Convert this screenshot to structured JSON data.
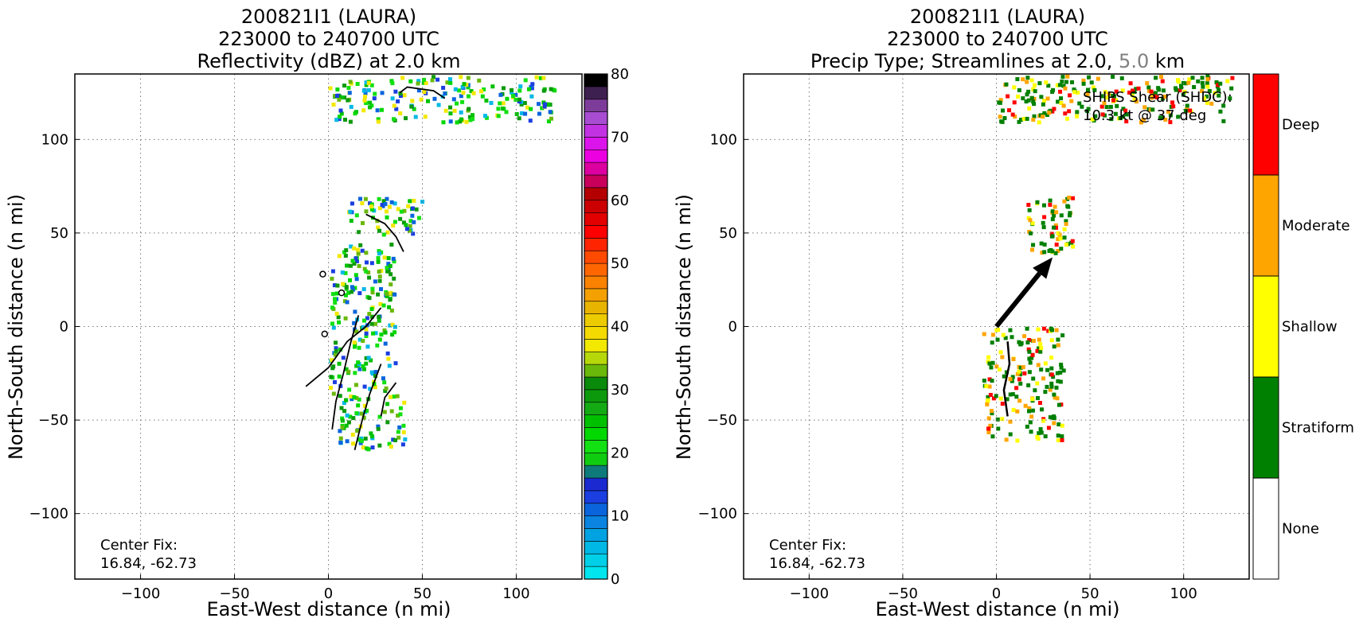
{
  "chart_data": [
    {
      "type": "heatmap",
      "title_lines": [
        "200821I1 (LAURA)",
        "223000 to 240700 UTC",
        "Reflectivity (dBZ) at 2.0 km"
      ],
      "xlabel": "East-West distance (n mi)",
      "ylabel": "North-South distance (n mi)",
      "xlim": [
        -135,
        135
      ],
      "ylim": [
        -135,
        135
      ],
      "xticks": [
        -100,
        -50,
        0,
        50,
        100
      ],
      "yticks": [
        -100,
        -50,
        0,
        50,
        100
      ],
      "xtick_labels": [
        "−100",
        "−50",
        "0",
        "50",
        "100"
      ],
      "ytick_labels": [
        "−100",
        "−50",
        "0",
        "50",
        "100"
      ],
      "grid": true,
      "annotation_lines": [
        "Center Fix:",
        "16.84, -62.73"
      ],
      "colorbar": {
        "min": 0,
        "max": 80,
        "step": 2.5,
        "ticks": [
          0,
          10,
          20,
          30,
          40,
          50,
          60,
          70,
          80
        ],
        "tick_labels": [
          "0",
          "10",
          "20",
          "30",
          "40",
          "50",
          "60",
          "70",
          "80"
        ],
        "colors": [
          "#00e5ee",
          "#00cfe8",
          "#00b8e6",
          "#00a2e2",
          "#0a84e0",
          "#0a64dc",
          "#1a3ee0",
          "#1a2ad0",
          "#0f7a7a",
          "#10cc10",
          "#12e012",
          "#00d800",
          "#00c000",
          "#14aa14",
          "#0c9a0c",
          "#0a8a0a",
          "#6ab80a",
          "#b6d80a",
          "#f2e800",
          "#f4da00",
          "#eccb00",
          "#e8b400",
          "#f4a000",
          "#fa8200",
          "#ff6600",
          "#ff4a00",
          "#ff2400",
          "#ff0000",
          "#e20000",
          "#cc0000",
          "#b40000",
          "#c8005c",
          "#dc00a0",
          "#ec00e2",
          "#dc14ec",
          "#c232e2",
          "#a84cd2",
          "#7e3c9a",
          "#3e2050",
          "#000000"
        ]
      },
      "echo_regions": [
        {
          "x": [
            0,
            35
          ],
          "y": [
            -35,
            45
          ]
        },
        {
          "x": [
            5,
            40
          ],
          "y": [
            -65,
            -35
          ]
        },
        {
          "x": [
            10,
            50
          ],
          "y": [
            50,
            70
          ]
        },
        {
          "x": [
            0,
            120
          ],
          "y": [
            110,
            135
          ]
        }
      ],
      "marker_points": [
        [
          -3,
          28
        ],
        [
          7,
          18
        ],
        [
          -2,
          -4
        ]
      ]
    },
    {
      "type": "heatmap",
      "title_lines": [
        "200821I1 (LAURA)",
        "223000 to 240700 UTC"
      ],
      "title_line3": {
        "prefix": "Precip Type; Streamlines at 2.0, ",
        "highlight": "5.0",
        "suffix": " km",
        "highlight_color": "#808080"
      },
      "xlabel": "East-West distance (n mi)",
      "ylabel": "North-South distance (n mi)",
      "xlim": [
        -135,
        135
      ],
      "ylim": [
        -135,
        135
      ],
      "xticks": [
        -100,
        -50,
        0,
        50,
        100
      ],
      "yticks": [
        -100,
        -50,
        0,
        50,
        100
      ],
      "xtick_labels": [
        "−100",
        "−50",
        "0",
        "50",
        "100"
      ],
      "ytick_labels": [
        "−100",
        "−50",
        "0",
        "50",
        "100"
      ],
      "grid": true,
      "annotation_lines": [
        "Center Fix:",
        "16.84, -62.73"
      ],
      "shear_label_lines": [
        "SHIPS Shear (SHDC):",
        "10.3 kt @ 37 deg"
      ],
      "shear_vector": {
        "speed_kt": 10.3,
        "direction_deg": 37,
        "start": [
          0,
          0
        ],
        "end": [
          30,
          37
        ]
      },
      "colorbar": {
        "categories": [
          "None",
          "Stratiform",
          "Shallow",
          "Moderate",
          "Deep"
        ],
        "colors": [
          "#ffffff",
          "#008000",
          "#ffff00",
          "#ffa500",
          "#ff0000"
        ]
      },
      "echo_regions": [
        {
          "x": [
            -8,
            35
          ],
          "y": [
            -60,
            0
          ]
        },
        {
          "x": [
            15,
            40
          ],
          "y": [
            40,
            70
          ]
        },
        {
          "x": [
            0,
            125
          ],
          "y": [
            110,
            135
          ]
        }
      ]
    }
  ]
}
